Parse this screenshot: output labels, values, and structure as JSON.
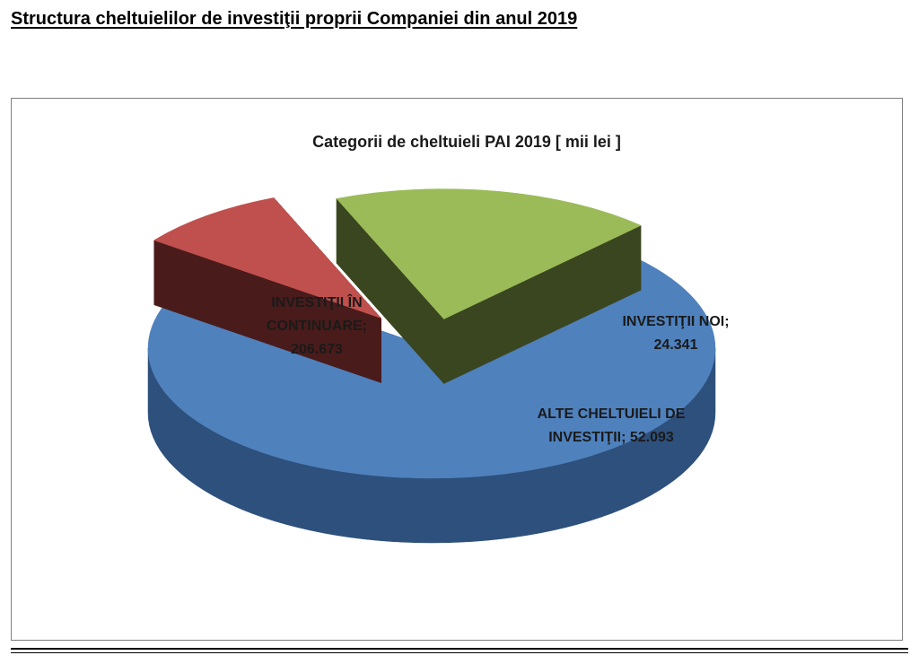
{
  "document": {
    "heading": "Structura cheltuielilor de investiţii proprii Companiei din anul 2019"
  },
  "chart_data": {
    "type": "pie",
    "style": "3d-exploded",
    "title": "Categorii de cheltuieli PAI 2019 [ mii lei ]",
    "unit": "mii lei",
    "legend": "none",
    "slices": [
      {
        "category": "INVESTIŢII ÎN CONTINUARE",
        "value": 206673,
        "display_value": "206.673",
        "label_lines": [
          "INVESTIŢII ÎN",
          "CONTINUARE;",
          "206.673"
        ],
        "color": "#4f81bd",
        "side_color": "#2e507c",
        "inner_color": "#1f3758"
      },
      {
        "category": "INVESTIŢII NOI",
        "value": 24341,
        "display_value": "24.341",
        "label_lines": [
          "INVESTIŢII NOI;",
          "24.341"
        ],
        "color": "#c0504d",
        "side_color": "#6e2726",
        "inner_color": "#4a1b1b"
      },
      {
        "category": "ALTE CHELTUIELI DE INVESTIŢII",
        "value": 52093,
        "display_value": "52.093",
        "label_lines": [
          "ALTE CHELTUIELI DE",
          "INVESTIŢII; 52.093"
        ],
        "color": "#9bbb59",
        "side_color": "#4d5e2a",
        "inner_color": "#3a461f"
      }
    ]
  }
}
